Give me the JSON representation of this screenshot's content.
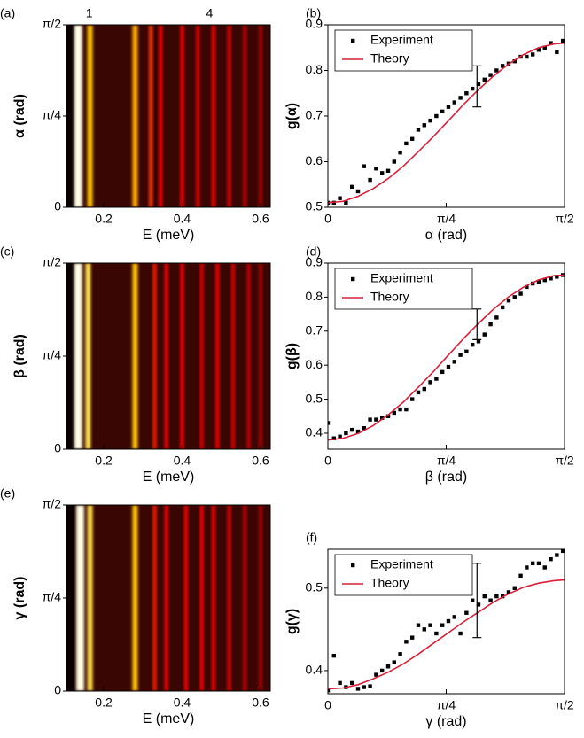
{
  "chart_data": [
    {
      "type": "heatmap",
      "label": "(a)",
      "xlabel": "E (meV)",
      "ylabel": "α (rad)",
      "xlim": [
        0.105,
        0.625
      ],
      "xticks": [
        0.2,
        0.4,
        0.6
      ],
      "ylim": [
        0,
        1.5708
      ],
      "yticks": [
        0,
        {
          "value": 0.7854,
          "label": "π/4"
        },
        {
          "value": 1.5708,
          "label": "π/2"
        }
      ],
      "annotations": [
        {
          "text": "1",
          "x": 0.163
        },
        {
          "text": "4",
          "x": 0.47
        }
      ],
      "peaks": {
        "E": [
          0.135,
          0.165,
          0.28,
          0.32,
          0.345,
          0.4,
          0.44,
          0.48,
          0.52,
          0.56,
          0.6
        ],
        "intensity": [
          1.0,
          0.85,
          0.8,
          0.6,
          0.5,
          0.45,
          0.4,
          0.45,
          0.4,
          0.35,
          0.3
        ]
      }
    },
    {
      "type": "scatter",
      "label": "(b)",
      "xlabel": "α (rad)",
      "ylabel": "g(α)",
      "legend": "upper left",
      "xlim": [
        0,
        1.5708
      ],
      "xticks": [
        0,
        {
          "value": 0.7854,
          "label": "π/4"
        },
        {
          "value": 1.5708,
          "label": "π/2"
        }
      ],
      "ylim": [
        0.5,
        0.9
      ],
      "yticks": [
        0.5,
        0.6,
        0.7,
        0.8,
        0.9
      ],
      "series": [
        {
          "name": "Experiment",
          "color": "#000000",
          "kind": "points",
          "x": [
            0.0,
            0.04,
            0.08,
            0.12,
            0.16,
            0.2,
            0.24,
            0.28,
            0.32,
            0.36,
            0.4,
            0.44,
            0.48,
            0.52,
            0.56,
            0.6,
            0.64,
            0.68,
            0.72,
            0.76,
            0.8,
            0.84,
            0.88,
            0.92,
            0.96,
            1.0,
            1.04,
            1.08,
            1.12,
            1.16,
            1.2,
            1.24,
            1.28,
            1.32,
            1.36,
            1.4,
            1.44,
            1.48,
            1.52,
            1.56
          ],
          "values": [
            0.51,
            0.51,
            0.52,
            0.51,
            0.545,
            0.535,
            0.59,
            0.56,
            0.585,
            0.575,
            0.58,
            0.6,
            0.62,
            0.64,
            0.65,
            0.67,
            0.68,
            0.69,
            0.7,
            0.71,
            0.72,
            0.73,
            0.74,
            0.75,
            0.76,
            0.77,
            0.78,
            0.79,
            0.8,
            0.81,
            0.815,
            0.82,
            0.83,
            0.83,
            0.835,
            0.845,
            0.85,
            0.86,
            0.84,
            0.865
          ]
        },
        {
          "name": "Theory",
          "color": "#d9203a",
          "kind": "line",
          "x": [
            0,
            0.1,
            0.2,
            0.3,
            0.4,
            0.5,
            0.6,
            0.7,
            0.8,
            0.9,
            1.0,
            1.1,
            1.2,
            1.3,
            1.4,
            1.5,
            1.5708
          ],
          "values": [
            0.51,
            0.513,
            0.524,
            0.541,
            0.563,
            0.59,
            0.622,
            0.655,
            0.69,
            0.725,
            0.758,
            0.788,
            0.814,
            0.835,
            0.85,
            0.858,
            0.86
          ]
        }
      ],
      "error_bars": {
        "x": [
          0.99
        ],
        "values": [
          0.765
        ],
        "errors": [
          0.045
        ]
      }
    },
    {
      "type": "heatmap",
      "label": "(c)",
      "xlabel": "E (meV)",
      "ylabel": "β (rad)",
      "xlim": [
        0.105,
        0.625
      ],
      "xticks": [
        0.2,
        0.4,
        0.6
      ],
      "ylim": [
        0,
        1.5708
      ],
      "yticks": [
        0,
        {
          "value": 0.7854,
          "label": "π/4"
        },
        {
          "value": 1.5708,
          "label": "π/2"
        }
      ],
      "peaks": {
        "E": [
          0.135,
          0.16,
          0.28,
          0.33,
          0.36,
          0.4,
          0.45,
          0.49,
          0.53,
          0.57,
          0.6
        ],
        "intensity": [
          1.0,
          0.9,
          0.85,
          0.55,
          0.5,
          0.5,
          0.4,
          0.45,
          0.4,
          0.35,
          0.3
        ]
      }
    },
    {
      "type": "scatter",
      "label": "(d)",
      "xlabel": "β (rad)",
      "ylabel": "g(β)",
      "legend": "upper left",
      "xlim": [
        0,
        1.5708
      ],
      "xticks": [
        0,
        {
          "value": 0.7854,
          "label": "π/4"
        },
        {
          "value": 1.5708,
          "label": "π/2"
        }
      ],
      "ylim": [
        0.353,
        0.9
      ],
      "yticks": [
        0.4,
        0.5,
        0.6,
        0.7,
        0.8,
        0.9
      ],
      "series": [
        {
          "name": "Experiment",
          "color": "#000000",
          "kind": "points",
          "x": [
            0.0,
            0.04,
            0.08,
            0.12,
            0.16,
            0.2,
            0.24,
            0.28,
            0.32,
            0.36,
            0.4,
            0.44,
            0.48,
            0.52,
            0.56,
            0.6,
            0.64,
            0.68,
            0.72,
            0.76,
            0.8,
            0.84,
            0.88,
            0.92,
            0.96,
            1.0,
            1.04,
            1.08,
            1.12,
            1.16,
            1.2,
            1.24,
            1.28,
            1.32,
            1.36,
            1.4,
            1.44,
            1.48,
            1.52,
            1.56
          ],
          "values": [
            0.43,
            0.385,
            0.39,
            0.4,
            0.41,
            0.405,
            0.415,
            0.44,
            0.44,
            0.445,
            0.45,
            0.46,
            0.47,
            0.47,
            0.5,
            0.52,
            0.53,
            0.55,
            0.56,
            0.58,
            0.595,
            0.61,
            0.63,
            0.64,
            0.66,
            0.67,
            0.69,
            0.72,
            0.74,
            0.77,
            0.79,
            0.8,
            0.81,
            0.83,
            0.84,
            0.845,
            0.85,
            0.855,
            0.86,
            0.865
          ]
        },
        {
          "name": "Theory",
          "color": "#d9203a",
          "kind": "line",
          "x": [
            0,
            0.1,
            0.2,
            0.3,
            0.4,
            0.5,
            0.6,
            0.7,
            0.8,
            0.9,
            1.0,
            1.1,
            1.2,
            1.3,
            1.4,
            1.5,
            1.5708
          ],
          "values": [
            0.38,
            0.385,
            0.399,
            0.422,
            0.454,
            0.491,
            0.535,
            0.581,
            0.63,
            0.678,
            0.723,
            0.765,
            0.801,
            0.83,
            0.851,
            0.863,
            0.865
          ]
        }
      ],
      "error_bars": {
        "x": [
          0.99
        ],
        "values": [
          0.72
        ],
        "errors": [
          0.045
        ]
      }
    },
    {
      "type": "heatmap",
      "label": "(e)",
      "xlabel": "E (meV)",
      "ylabel": "γ (rad)",
      "xlim": [
        0.105,
        0.625
      ],
      "xticks": [
        0.2,
        0.4,
        0.6
      ],
      "ylim": [
        0,
        1.5708
      ],
      "yticks": [
        0,
        {
          "value": 0.7854,
          "label": "π/4"
        },
        {
          "value": 1.5708,
          "label": "π/2"
        }
      ],
      "peaks": {
        "E": [
          0.14,
          0.165,
          0.28,
          0.33,
          0.36,
          0.41,
          0.45,
          0.48,
          0.52,
          0.56,
          0.6
        ],
        "intensity": [
          1.0,
          0.9,
          0.85,
          0.55,
          0.5,
          0.5,
          0.45,
          0.45,
          0.4,
          0.35,
          0.3
        ]
      }
    },
    {
      "type": "scatter",
      "label": "(f)",
      "xlabel": "γ (rad)",
      "ylabel": "g(γ)",
      "legend": "upper left",
      "xlim": [
        0,
        1.5708
      ],
      "xticks": [
        0,
        {
          "value": 0.7854,
          "label": "π/4"
        },
        {
          "value": 1.5708,
          "label": "π/2"
        }
      ],
      "ylim": [
        0.372,
        0.547
      ],
      "yticks": [
        0.4,
        0.5
      ],
      "series": [
        {
          "name": "Experiment",
          "color": "#000000",
          "kind": "points",
          "x": [
            0.0,
            0.04,
            0.08,
            0.12,
            0.16,
            0.2,
            0.24,
            0.28,
            0.32,
            0.36,
            0.4,
            0.44,
            0.48,
            0.52,
            0.56,
            0.6,
            0.64,
            0.68,
            0.72,
            0.76,
            0.8,
            0.84,
            0.88,
            0.92,
            0.96,
            1.0,
            1.04,
            1.08,
            1.12,
            1.16,
            1.2,
            1.24,
            1.28,
            1.32,
            1.36,
            1.4,
            1.44,
            1.48,
            1.52,
            1.56
          ],
          "values": [
            0.376,
            0.418,
            0.385,
            0.38,
            0.385,
            0.378,
            0.38,
            0.381,
            0.395,
            0.4,
            0.405,
            0.41,
            0.42,
            0.435,
            0.44,
            0.455,
            0.45,
            0.455,
            0.445,
            0.455,
            0.46,
            0.465,
            0.445,
            0.47,
            0.485,
            0.48,
            0.49,
            0.485,
            0.49,
            0.49,
            0.495,
            0.5,
            0.515,
            0.525,
            0.53,
            0.53,
            0.525,
            0.535,
            0.54,
            0.545
          ]
        },
        {
          "name": "Theory",
          "color": "#d9203a",
          "kind": "line",
          "x": [
            0,
            0.1,
            0.2,
            0.3,
            0.4,
            0.5,
            0.6,
            0.7,
            0.8,
            0.9,
            1.0,
            1.1,
            1.2,
            1.3,
            1.4,
            1.5,
            1.5708
          ],
          "values": [
            0.378,
            0.379,
            0.383,
            0.39,
            0.398,
            0.408,
            0.42,
            0.433,
            0.446,
            0.459,
            0.471,
            0.483,
            0.493,
            0.501,
            0.506,
            0.509,
            0.51
          ]
        }
      ],
      "error_bars": {
        "x": [
          0.99
        ],
        "values": [
          0.485
        ],
        "errors": [
          0.045
        ]
      }
    }
  ]
}
